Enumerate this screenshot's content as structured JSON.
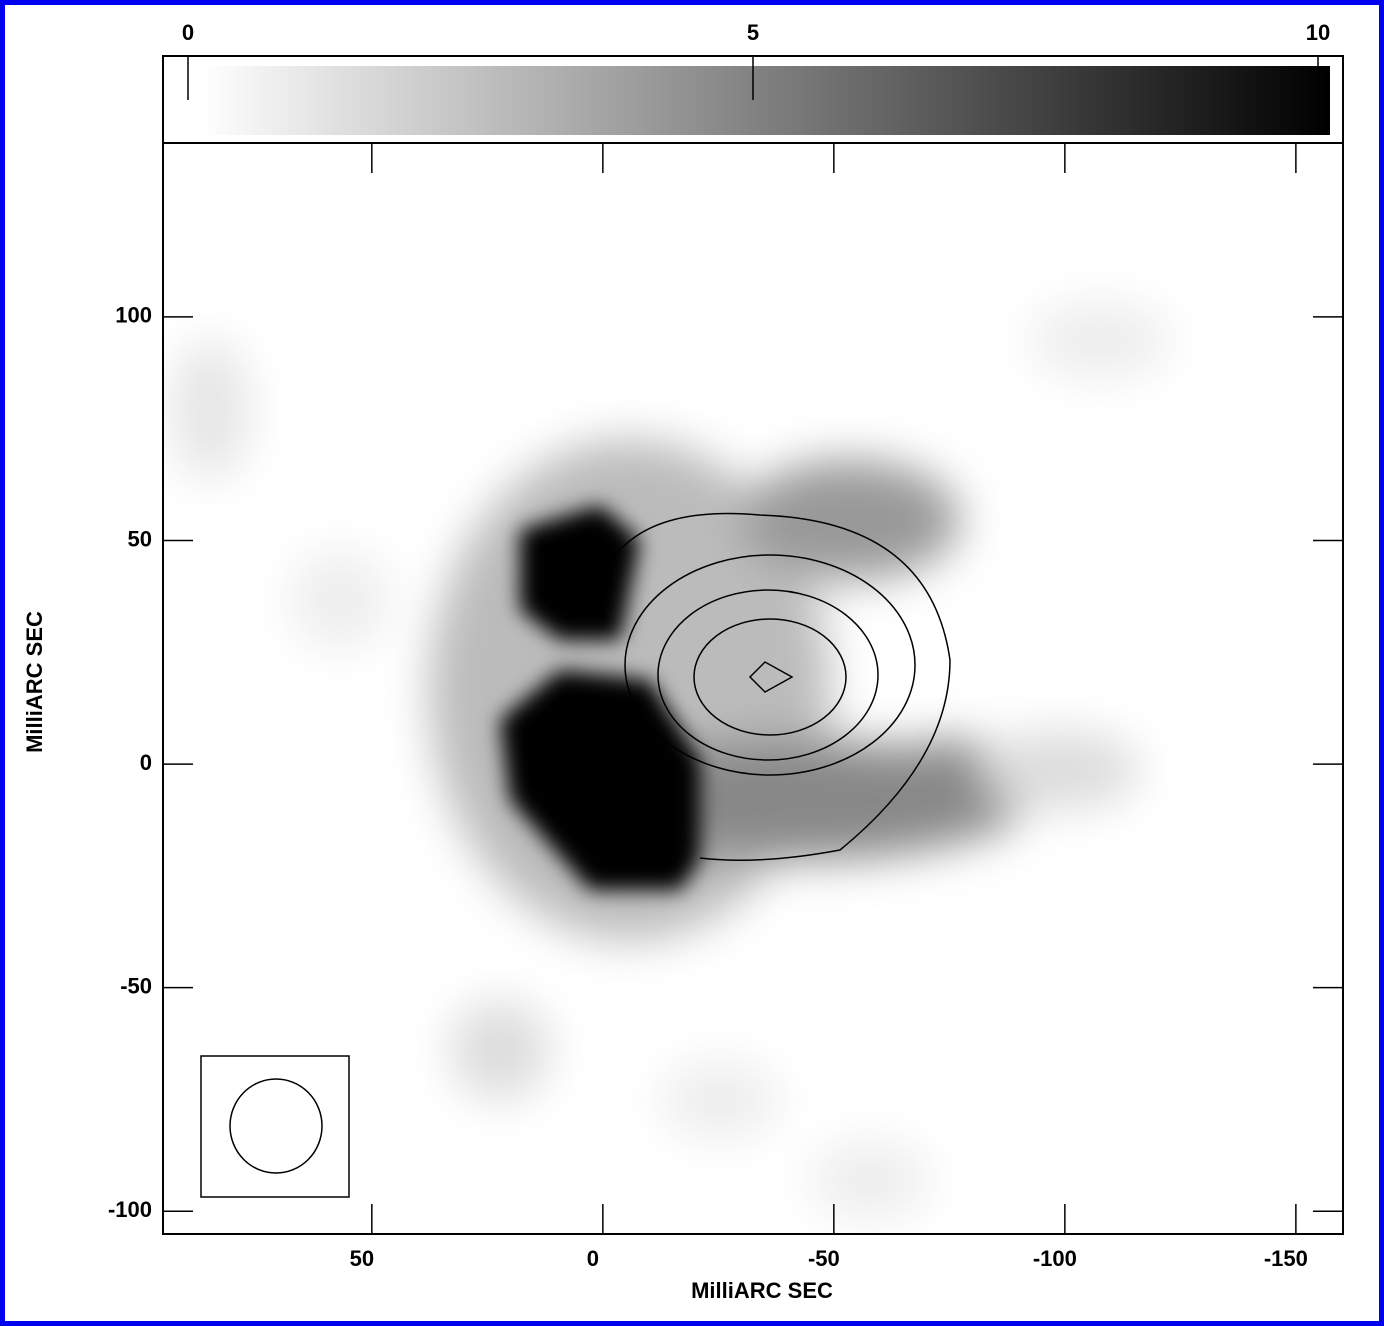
{
  "chart_data": {
    "type": "image",
    "xlabel": "MilliARC SEC",
    "ylabel": "MilliARC SEC",
    "xlim": [
      95.2,
      -160.2
    ],
    "xticks": [
      50,
      0,
      -50,
      -100,
      -150
    ],
    "ylim": [
      -105.1,
      138.9
    ],
    "yticks": [
      100,
      50,
      0,
      -50,
      -100
    ],
    "colorbar": {
      "lim": [
        0,
        10
      ],
      "ticks": [
        0,
        5,
        10
      ]
    }
  }
}
